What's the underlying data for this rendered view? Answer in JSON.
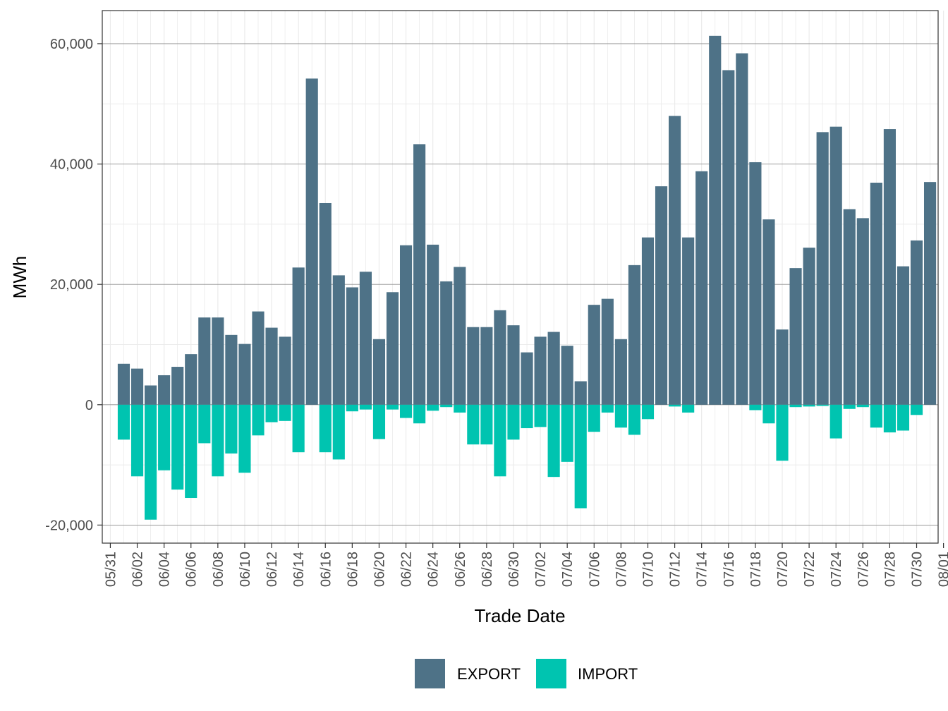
{
  "chart_data": {
    "type": "bar",
    "title": "",
    "xlabel": "Trade Date",
    "ylabel": "MWh",
    "ylim": [
      -23000,
      65500
    ],
    "y_ticks": [
      -20000,
      0,
      20000,
      40000,
      60000
    ],
    "y_tick_labels": [
      "-20,000",
      "0",
      "20,000",
      "40,000",
      "60,000"
    ],
    "x_tick_labels": [
      "05/31",
      "06/02",
      "06/04",
      "06/06",
      "06/08",
      "06/10",
      "06/12",
      "06/14",
      "06/16",
      "06/18",
      "06/20",
      "06/22",
      "06/24",
      "06/26",
      "06/28",
      "06/30",
      "07/02",
      "07/04",
      "07/06",
      "07/08",
      "07/10",
      "07/12",
      "07/14",
      "07/16",
      "07/18",
      "07/20",
      "07/22",
      "07/24",
      "07/26",
      "07/28",
      "07/30",
      "08/01"
    ],
    "start_date": "2024-05-31",
    "stacked": "diverging",
    "grid": true,
    "legend_position": "bottom",
    "x": [
      "06/01",
      "06/02",
      "06/03",
      "06/04",
      "06/05",
      "06/06",
      "06/07",
      "06/08",
      "06/09",
      "06/10",
      "06/11",
      "06/12",
      "06/13",
      "06/14",
      "06/15",
      "06/16",
      "06/17",
      "06/18",
      "06/19",
      "06/20",
      "06/21",
      "06/22",
      "06/23",
      "06/24",
      "06/25",
      "06/26",
      "06/27",
      "06/28",
      "06/29",
      "06/30",
      "07/01",
      "07/02",
      "07/03",
      "07/04",
      "07/05",
      "07/06",
      "07/07",
      "07/08",
      "07/09",
      "07/10",
      "07/11",
      "07/12",
      "07/13",
      "07/14",
      "07/15",
      "07/16",
      "07/17",
      "07/18",
      "07/19",
      "07/20",
      "07/21",
      "07/22",
      "07/23",
      "07/24",
      "07/25",
      "07/26",
      "07/27",
      "07/28",
      "07/29",
      "07/30",
      "07/31"
    ],
    "series": [
      {
        "name": "EXPORT",
        "color": "#4e7287",
        "values": [
          6800,
          6000,
          3200,
          4900,
          6300,
          8400,
          14500,
          14500,
          11600,
          10100,
          15500,
          12800,
          11300,
          22800,
          54200,
          33500,
          21500,
          19500,
          22100,
          10900,
          18700,
          26500,
          43300,
          26600,
          20500,
          22900,
          12900,
          12900,
          15700,
          13200,
          8700,
          11300,
          12100,
          9800,
          3900,
          16600,
          17600,
          10900,
          23200,
          27800,
          36300,
          48000,
          27800,
          38800,
          61300,
          55600,
          58400,
          40300,
          30800,
          12500,
          22700,
          26100,
          45300,
          46200,
          32500,
          31000,
          36900,
          45800,
          23000,
          27300,
          37000
        ]
      },
      {
        "name": "IMPORT",
        "color": "#00c4b0",
        "values": [
          -5800,
          -11900,
          -19100,
          -10900,
          -14100,
          -15500,
          -6400,
          -11900,
          -8100,
          -11300,
          -5100,
          -2900,
          -2700,
          -7900,
          0,
          -7900,
          -9100,
          -1100,
          -800,
          -5700,
          -800,
          -2200,
          -3100,
          -1000,
          -400,
          -1300,
          -6600,
          -6600,
          -11900,
          -5800,
          -3900,
          -3700,
          -12000,
          -9500,
          -17200,
          -4500,
          -1300,
          -3800,
          -5000,
          -2400,
          0,
          -300,
          -1300,
          0,
          0,
          0,
          0,
          -900,
          -3100,
          -9300,
          -400,
          -300,
          -200,
          -5600,
          -700,
          -400,
          -3800,
          -4600,
          -4300,
          -1700,
          0
        ]
      }
    ]
  }
}
